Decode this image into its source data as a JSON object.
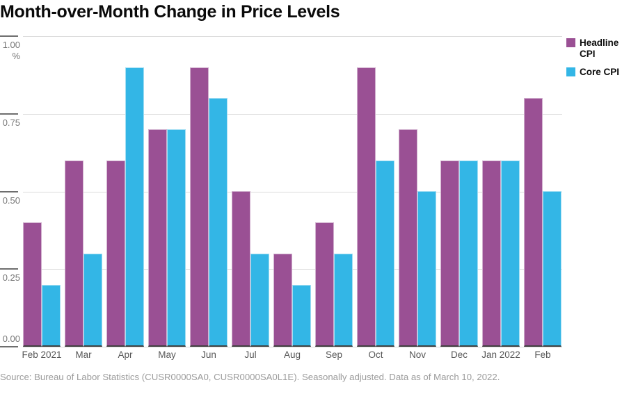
{
  "title": "Month-over-Month Change in Price Levels",
  "source_note": "Source: Bureau of Labor Statistics (CUSR0000SA0, CUSR0000SA0L1E). Seasonally adjusted. Data as of March 10, 2022.",
  "colors": {
    "headline": "#9A5094",
    "core": "#33B6E6",
    "grid_light": "#DCDCDC",
    "tick_dark": "#6E6E6E",
    "y_label_text": "#767676",
    "x_label_text": "#565656",
    "source_text": "#9B9B9B",
    "bar_baseline": "#404040",
    "title_text": "#0A0A0A"
  },
  "y_axis": {
    "unit": "%",
    "ticks": [
      {
        "label": "1.00",
        "value": 1.0
      },
      {
        "label": "0.75",
        "value": 0.75
      },
      {
        "label": "0.50",
        "value": 0.5
      },
      {
        "label": "0.25",
        "value": 0.25
      },
      {
        "label": "0.00",
        "value": 0.0
      }
    ]
  },
  "legend": [
    {
      "name": "Headline CPI",
      "color": "#9A5094"
    },
    {
      "name": "Core CPI",
      "color": "#33B6E6"
    }
  ],
  "chart_data": {
    "type": "bar",
    "title": "Month-over-Month Change in Price Levels",
    "categories": [
      "Feb 2021",
      "Mar",
      "Apr",
      "May",
      "Jun",
      "Jul",
      "Aug",
      "Sep",
      "Oct",
      "Nov",
      "Dec",
      "Jan 2022",
      "Feb"
    ],
    "series": [
      {
        "name": "Headline CPI",
        "color": "#9A5094",
        "values": [
          0.4,
          0.6,
          0.6,
          0.7,
          0.9,
          0.5,
          0.3,
          0.4,
          0.9,
          0.7,
          0.6,
          0.6,
          0.8
        ]
      },
      {
        "name": "Core CPI",
        "color": "#33B6E6",
        "values": [
          0.2,
          0.3,
          0.9,
          0.7,
          0.8,
          0.3,
          0.2,
          0.3,
          0.6,
          0.5,
          0.6,
          0.6,
          0.5
        ]
      }
    ],
    "xlabel": "",
    "ylabel": "%",
    "ylim": [
      0,
      1.0
    ],
    "yticks": [
      0,
      0.25,
      0.5,
      0.75,
      1.0
    ],
    "grid": true,
    "legend_position": "top-right"
  }
}
